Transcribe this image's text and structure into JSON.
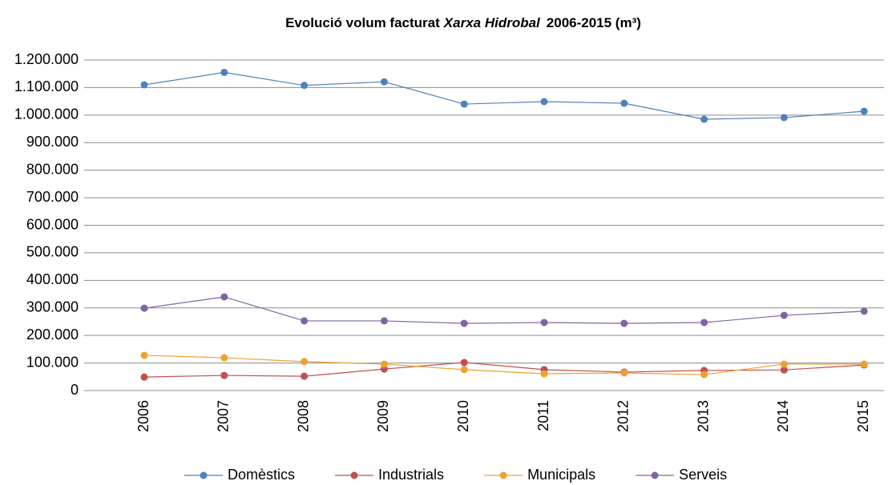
{
  "chart_data": {
    "type": "line",
    "title": [
      "Evolució volum facturat",
      "Xarxa Hidrobal",
      "2006-2015 (m³)"
    ],
    "categories": [
      "2006",
      "2007",
      "2008",
      "2009",
      "2010",
      "2011",
      "2012",
      "2013",
      "2014",
      "2015"
    ],
    "series": [
      {
        "name": "Domèstics",
        "color": "#4f81bd",
        "values": [
          1110000,
          1155000,
          1108000,
          1121000,
          1040000,
          1049000,
          1043000,
          985000,
          991000,
          1014000
        ]
      },
      {
        "name": "Industrials",
        "color": "#c0504d",
        "values": [
          49000,
          55000,
          52000,
          78000,
          102000,
          76000,
          67000,
          73000,
          75000,
          93000
        ]
      },
      {
        "name": "Municipals",
        "color": "#f0a030",
        "values": [
          128000,
          119000,
          105000,
          96000,
          76000,
          61000,
          64000,
          58000,
          96000,
          96000
        ]
      },
      {
        "name": "Serveis",
        "color": "#8064a2",
        "values": [
          299000,
          340000,
          253000,
          253000,
          244000,
          247000,
          244000,
          247000,
          273000,
          288000
        ]
      }
    ],
    "ylim": [
      0,
      1200000
    ],
    "yticks": [
      0,
      {
        "value": 100000,
        "label": "100.000"
      },
      {
        "value": 200000,
        "label": "200.000"
      },
      {
        "value": 300000,
        "label": "300.000"
      },
      {
        "value": 400000,
        "label": "400.000"
      },
      {
        "value": 500000,
        "label": "500.000"
      },
      {
        "value": 600000,
        "label": "600.000"
      },
      {
        "value": 700000,
        "label": "700.000"
      },
      {
        "value": 800000,
        "label": "800.000"
      },
      {
        "value": 900000,
        "label": "900.000"
      },
      {
        "value": 1000000,
        "label": "1.000.000"
      },
      {
        "value": 1100000,
        "label": "1.100.000"
      },
      {
        "value": 1200000,
        "label": "1.200.000"
      }
    ],
    "grid": true,
    "legend": "bottom"
  }
}
